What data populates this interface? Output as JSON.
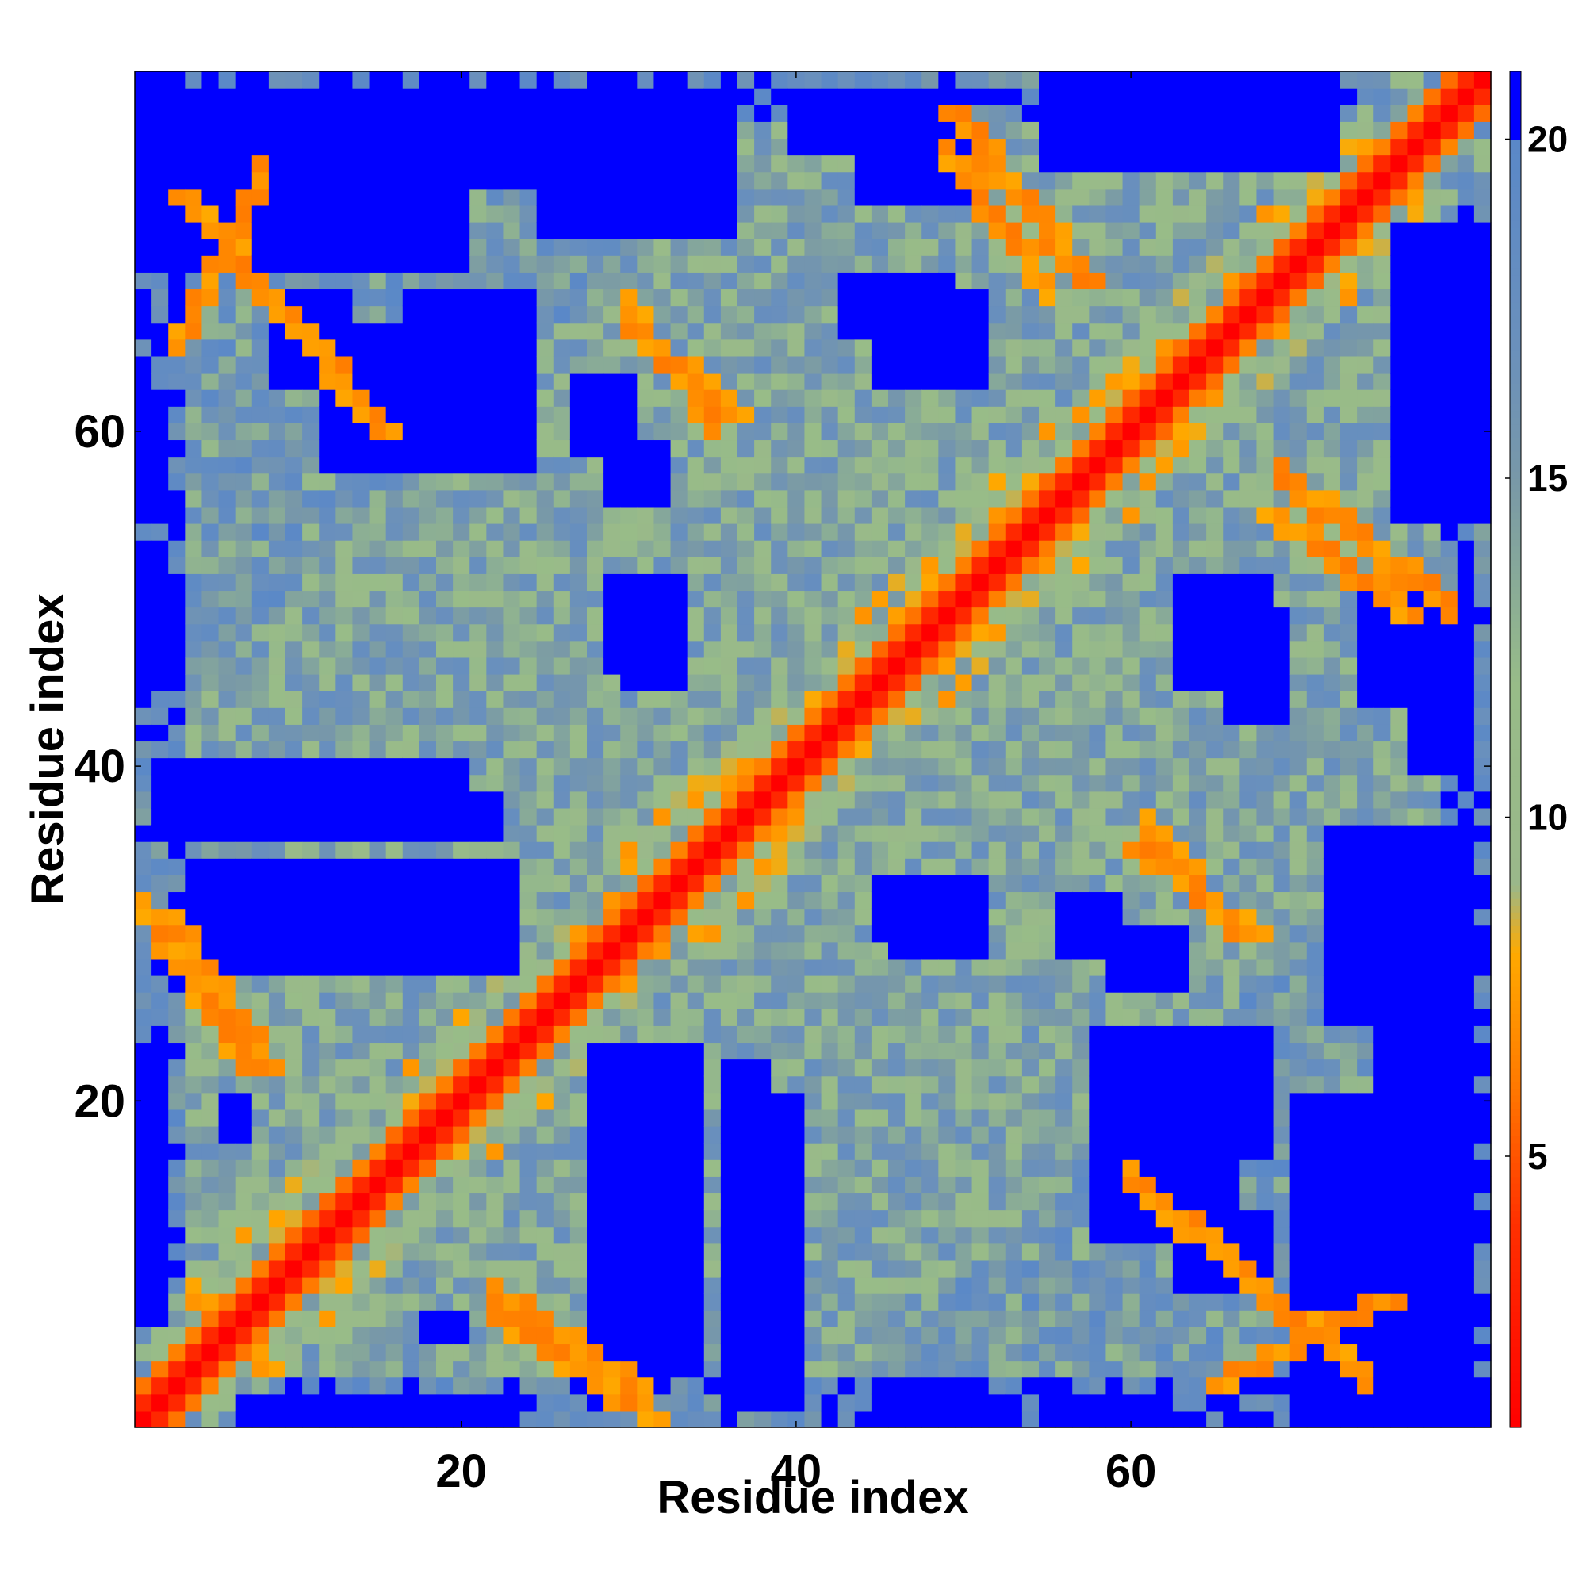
{
  "chart_data": {
    "type": "heatmap",
    "title": "",
    "xlabel": "Residue index",
    "ylabel": "Residue index",
    "n_residues": 81,
    "xlim": [
      0.5,
      81.5
    ],
    "ylim": [
      0.5,
      81.5
    ],
    "x_ticks": [
      20,
      40,
      60
    ],
    "y_ticks": [
      20,
      40,
      60
    ],
    "colorbar": {
      "range": [
        1,
        21
      ],
      "ticks": [
        5,
        10,
        15,
        20
      ],
      "stops": [
        {
          "value": 1,
          "color": "#ff0000"
        },
        {
          "value": 4,
          "color": "#ff3000"
        },
        {
          "value": 6,
          "color": "#ff7800"
        },
        {
          "value": 8,
          "color": "#ffaa00"
        },
        {
          "value": 9,
          "color": "#9ab88a"
        },
        {
          "value": 12,
          "color": "#98bc88"
        },
        {
          "value": 15,
          "color": "#7898a8"
        },
        {
          "value": 17,
          "color": "#6a90bc"
        },
        {
          "value": 20,
          "color": "#5a88c8"
        },
        {
          "value": 20.01,
          "color": "#0000ff"
        },
        {
          "value": 21,
          "color": "#0000ff"
        }
      ]
    },
    "values_description": "symmetric residue-residue distance matrix (Angstrom); diagonal ~1, contacts 5-8 shown orange, >20 saturated blue",
    "hotspots": [
      {
        "start": [
          3,
          74
        ],
        "end": [
          15,
          60
        ],
        "color": "#ff9a00"
      },
      {
        "start": [
          30,
          66
        ],
        "end": [
          36,
          61
        ],
        "color": "#ff9a00"
      },
      {
        "start": [
          49,
          79
        ],
        "end": [
          57,
          69
        ],
        "color": "#ff9a00"
      },
      {
        "start": [
          2,
          31
        ],
        "end": [
          8,
          22
        ],
        "color": "#ff9a00"
      },
      {
        "start": [
          60,
          35
        ],
        "end": [
          67,
          30
        ],
        "color": "#ff9a00"
      },
      {
        "start": [
          68,
          55
        ],
        "end": [
          76,
          49
        ],
        "color": "#ff9a00"
      },
      {
        "start": [
          22,
          7
        ],
        "end": [
          31,
          1
        ],
        "color": "#ff9a00"
      },
      {
        "start": [
          65,
          3
        ],
        "end": [
          75,
          8
        ],
        "color": "#ff9a00"
      }
    ],
    "blue_regions": [
      [
        1,
        77,
        3,
        81
      ],
      [
        16,
        75,
        26,
        80
      ],
      [
        29,
        75,
        34,
        78
      ],
      [
        44,
        74,
        50,
        78
      ],
      [
        55,
        76,
        72,
        81
      ],
      [
        9,
        63,
        13,
        68
      ],
      [
        17,
        59,
        24,
        68
      ],
      [
        27,
        59,
        30,
        63
      ],
      [
        43,
        66,
        49,
        69
      ],
      [
        76,
        60,
        80,
        71
      ],
      [
        1,
        48,
        2,
        52
      ],
      [
        30,
        45,
        33,
        51
      ],
      [
        63,
        45,
        68,
        51
      ],
      [
        77,
        40,
        80,
        50
      ],
      [
        7,
        29,
        23,
        33
      ],
      [
        9,
        28,
        13,
        31
      ],
      [
        17,
        36,
        22,
        38
      ],
      [
        46,
        29,
        51,
        33
      ],
      [
        56,
        29,
        59,
        32
      ],
      [
        72,
        25,
        80,
        36
      ],
      [
        1,
        14,
        2,
        23
      ],
      [
        6,
        18,
        7,
        20
      ],
      [
        28,
        4,
        34,
        23
      ],
      [
        36,
        2,
        40,
        20
      ],
      [
        58,
        12,
        66,
        24
      ],
      [
        70,
        1,
        80,
        20
      ],
      [
        45,
        1,
        51,
        3
      ],
      [
        7,
        1,
        23,
        2
      ],
      [
        55,
        1,
        62,
        2
      ]
    ]
  }
}
